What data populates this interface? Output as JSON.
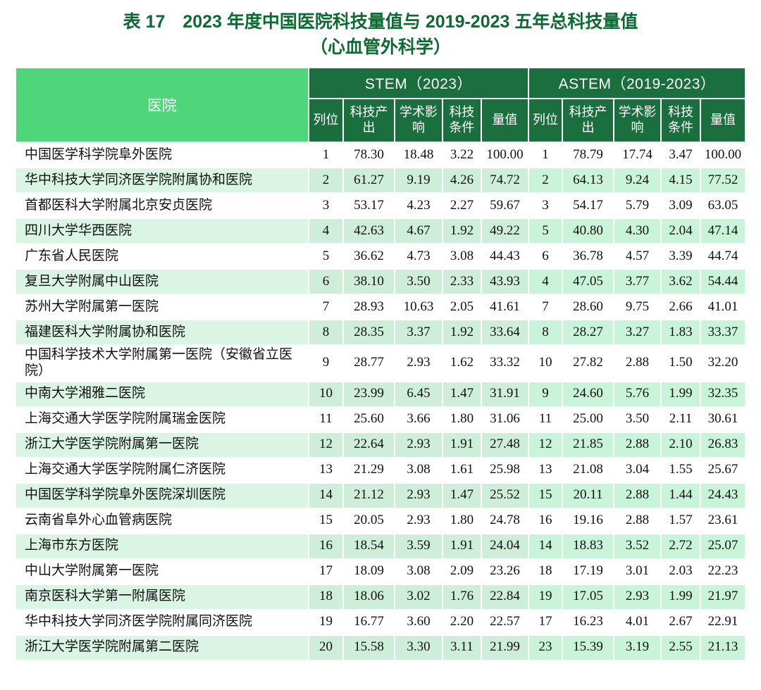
{
  "title": {
    "line1": "表 17　2023 年度中国医院科技量值与 2019-2023 五年总科技量值",
    "line2": "（心血管外科学）"
  },
  "colors": {
    "title_green": "#0d6a33",
    "header_light_green": "#4fd67b",
    "header_dark_green": "#1b6e3e",
    "row_green_hospital": "#daf5e3",
    "row_green_stem": "#cfeeda",
    "row_green_astem": "#c9f4d9"
  },
  "table": {
    "hospital_header": "医院",
    "groups": [
      {
        "label": "STEM（2023）"
      },
      {
        "label": "ASTEM（2019-2023）"
      }
    ],
    "sub_headers": [
      "列位",
      "科技产出",
      "学术影响",
      "科技条件",
      "量值"
    ],
    "rows": [
      {
        "hospital": "中国医学科学院阜外医院",
        "stem": [
          "1",
          "78.30",
          "18.48",
          "3.22",
          "100.00"
        ],
        "astem": [
          "1",
          "78.79",
          "17.74",
          "3.47",
          "100.00"
        ]
      },
      {
        "hospital": "华中科技大学同济医学院附属协和医院",
        "stem": [
          "2",
          "61.27",
          "9.19",
          "4.26",
          "74.72"
        ],
        "astem": [
          "2",
          "64.13",
          "9.24",
          "4.15",
          "77.52"
        ]
      },
      {
        "hospital": "首都医科大学附属北京安贞医院",
        "stem": [
          "3",
          "53.17",
          "4.23",
          "2.27",
          "59.67"
        ],
        "astem": [
          "3",
          "54.17",
          "5.79",
          "3.09",
          "63.05"
        ]
      },
      {
        "hospital": "四川大学华西医院",
        "stem": [
          "4",
          "42.63",
          "4.67",
          "1.92",
          "49.22"
        ],
        "astem": [
          "5",
          "40.80",
          "4.30",
          "2.04",
          "47.14"
        ]
      },
      {
        "hospital": "广东省人民医院",
        "stem": [
          "5",
          "36.62",
          "4.73",
          "3.08",
          "44.43"
        ],
        "astem": [
          "6",
          "36.78",
          "4.57",
          "3.39",
          "44.74"
        ]
      },
      {
        "hospital": "复旦大学附属中山医院",
        "stem": [
          "6",
          "38.10",
          "3.50",
          "2.33",
          "43.93"
        ],
        "astem": [
          "4",
          "47.05",
          "3.77",
          "3.62",
          "54.44"
        ]
      },
      {
        "hospital": "苏州大学附属第一医院",
        "stem": [
          "7",
          "28.93",
          "10.63",
          "2.05",
          "41.61"
        ],
        "astem": [
          "7",
          "28.60",
          "9.75",
          "2.66",
          "41.01"
        ]
      },
      {
        "hospital": "福建医科大学附属协和医院",
        "stem": [
          "8",
          "28.35",
          "3.37",
          "1.92",
          "33.64"
        ],
        "astem": [
          "8",
          "28.27",
          "3.27",
          "1.83",
          "33.37"
        ]
      },
      {
        "hospital": "中国科学技术大学附属第一医院（安徽省立医院）",
        "stem": [
          "9",
          "28.77",
          "2.93",
          "1.62",
          "33.32"
        ],
        "astem": [
          "10",
          "27.82",
          "2.88",
          "1.50",
          "32.20"
        ]
      },
      {
        "hospital": "中南大学湘雅二医院",
        "stem": [
          "10",
          "23.99",
          "6.45",
          "1.47",
          "31.91"
        ],
        "astem": [
          "9",
          "24.60",
          "5.76",
          "1.99",
          "32.35"
        ]
      },
      {
        "hospital": "上海交通大学医学院附属瑞金医院",
        "stem": [
          "11",
          "25.60",
          "3.66",
          "1.80",
          "31.06"
        ],
        "astem": [
          "11",
          "25.00",
          "3.50",
          "2.11",
          "30.61"
        ]
      },
      {
        "hospital": "浙江大学医学院附属第一医院",
        "stem": [
          "12",
          "22.64",
          "2.93",
          "1.91",
          "27.48"
        ],
        "astem": [
          "12",
          "21.85",
          "2.88",
          "2.10",
          "26.83"
        ]
      },
      {
        "hospital": "上海交通大学医学院附属仁济医院",
        "stem": [
          "13",
          "21.29",
          "3.08",
          "1.61",
          "25.98"
        ],
        "astem": [
          "13",
          "21.08",
          "3.04",
          "1.55",
          "25.67"
        ]
      },
      {
        "hospital": "中国医学科学院阜外医院深圳医院",
        "stem": [
          "14",
          "21.12",
          "2.93",
          "1.47",
          "25.52"
        ],
        "astem": [
          "15",
          "20.11",
          "2.88",
          "1.44",
          "24.43"
        ]
      },
      {
        "hospital": "云南省阜外心血管病医院",
        "stem": [
          "15",
          "20.05",
          "2.93",
          "1.80",
          "24.78"
        ],
        "astem": [
          "16",
          "19.16",
          "2.88",
          "1.57",
          "23.61"
        ]
      },
      {
        "hospital": "上海市东方医院",
        "stem": [
          "16",
          "18.54",
          "3.59",
          "1.91",
          "24.04"
        ],
        "astem": [
          "14",
          "18.83",
          "3.52",
          "2.72",
          "25.07"
        ]
      },
      {
        "hospital": "中山大学附属第一医院",
        "stem": [
          "17",
          "18.09",
          "3.08",
          "2.09",
          "23.26"
        ],
        "astem": [
          "18",
          "17.19",
          "3.01",
          "2.03",
          "22.23"
        ]
      },
      {
        "hospital": "南京医科大学第一附属医院",
        "stem": [
          "18",
          "18.06",
          "3.02",
          "1.76",
          "22.84"
        ],
        "astem": [
          "19",
          "17.05",
          "2.93",
          "1.99",
          "21.97"
        ]
      },
      {
        "hospital": "华中科技大学同济医学院附属同济医院",
        "stem": [
          "19",
          "16.77",
          "3.60",
          "2.20",
          "22.57"
        ],
        "astem": [
          "17",
          "16.23",
          "4.01",
          "2.67",
          "22.91"
        ]
      },
      {
        "hospital": "浙江大学医学院附属第二医院",
        "stem": [
          "20",
          "15.58",
          "3.30",
          "3.11",
          "21.99"
        ],
        "astem": [
          "23",
          "15.39",
          "3.19",
          "2.55",
          "21.13"
        ]
      }
    ]
  }
}
